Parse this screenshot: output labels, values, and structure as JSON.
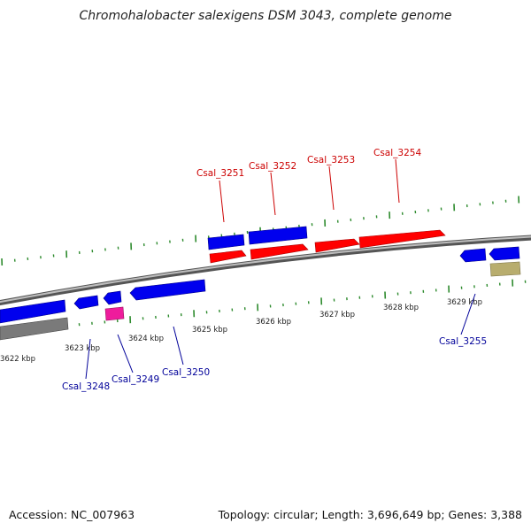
{
  "header": {
    "title": "Chromohalobacter salexigens DSM 3043, complete genome"
  },
  "footer": {
    "accession": "Accession: NC_007963",
    "summary": "Topology: circular; Length: 3,696,649 bp; Genes: 3,388"
  },
  "colors": {
    "forward_cds": "#ff0000",
    "reverse_cds": "#0000ee",
    "rna": "#ee1c9c",
    "other": "#b8ad6e",
    "backbone": "#8a8a8a",
    "ticks": "#2e8b2e",
    "forward_label": "#cc0000",
    "reverse_label": "#000099"
  },
  "scale": {
    "tick_labels": [
      {
        "kbp": 3622,
        "text": "3622 kbp"
      },
      {
        "kbp": 3623,
        "text": "3623 kbp"
      },
      {
        "kbp": 3624,
        "text": "3624 kbp"
      },
      {
        "kbp": 3625,
        "text": "3625 kbp"
      },
      {
        "kbp": 3626,
        "text": "3626 kbp"
      },
      {
        "kbp": 3627,
        "text": "3627 kbp"
      },
      {
        "kbp": 3628,
        "text": "3628 kbp"
      },
      {
        "kbp": 3629,
        "text": "3629 kbp"
      }
    ]
  },
  "gene_labels": [
    {
      "id": "csal-3248",
      "text": "Csal_3248",
      "strand": "reverse"
    },
    {
      "id": "csal-3249",
      "text": "Csal_3249",
      "strand": "reverse"
    },
    {
      "id": "csal-3250",
      "text": "Csal_3250",
      "strand": "reverse"
    },
    {
      "id": "csal-3251",
      "text": "Csal_3251",
      "strand": "forward"
    },
    {
      "id": "csal-3252",
      "text": "Csal_3252",
      "strand": "forward"
    },
    {
      "id": "csal-3253",
      "text": "Csal_3253",
      "strand": "forward"
    },
    {
      "id": "csal-3254",
      "text": "Csal_3254",
      "strand": "forward"
    },
    {
      "id": "csal-3255",
      "text": "Csal_3255",
      "strand": "reverse"
    }
  ]
}
